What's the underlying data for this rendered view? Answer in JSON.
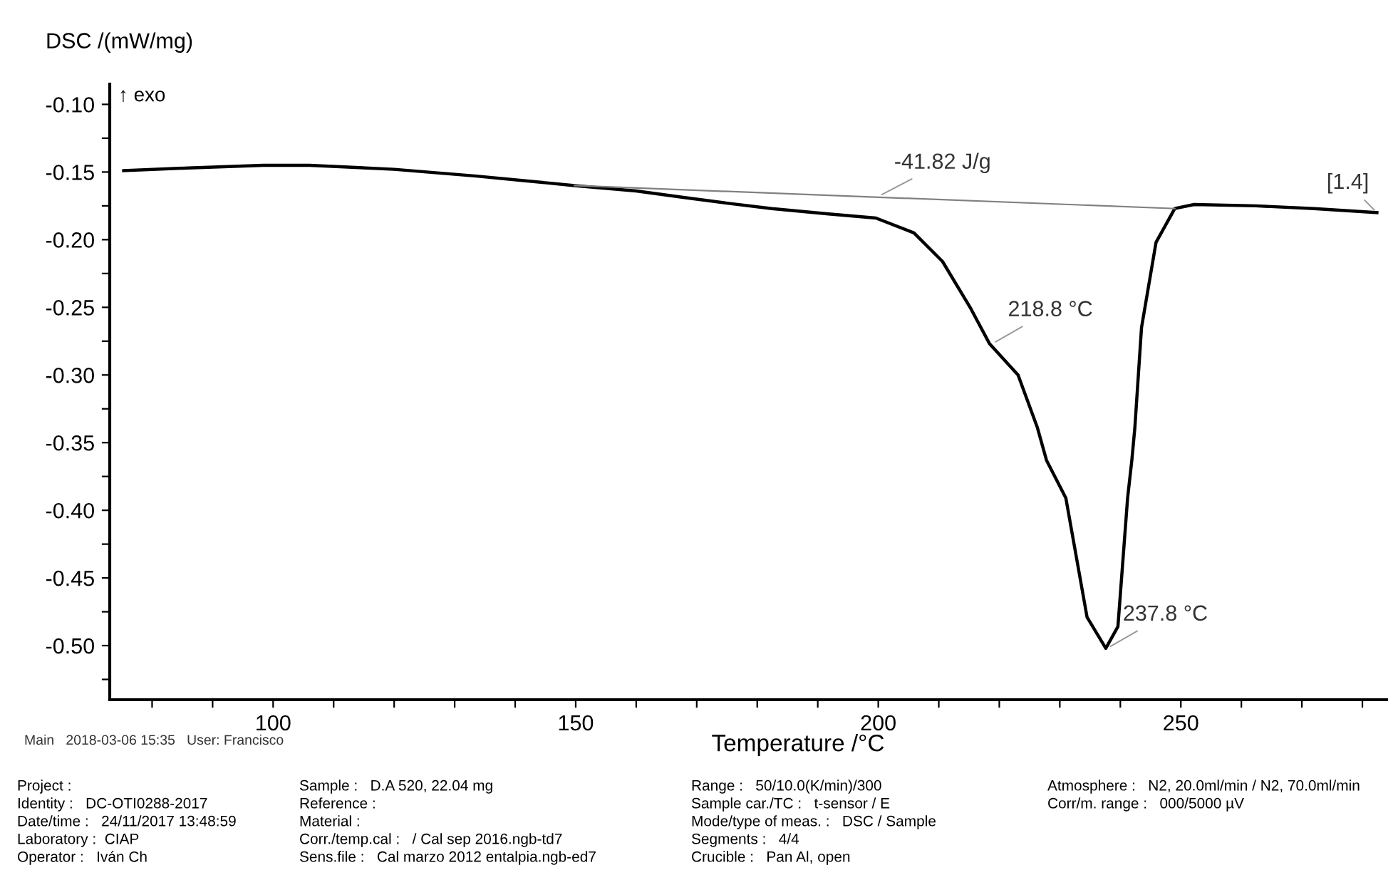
{
  "chart_data": {
    "type": "line",
    "xlabel": "Temperature /°C",
    "ylabel": "DSC /(mW/mg)",
    "xlim": [
      73,
      284
    ],
    "ylim": [
      -0.54,
      -0.085
    ],
    "xticks": [
      {
        "value": 80,
        "label": null
      },
      {
        "value": 90,
        "label": null
      },
      100,
      {
        "value": 110,
        "label": null
      },
      {
        "value": 120,
        "label": null
      },
      {
        "value": 130,
        "label": null
      },
      {
        "value": 140,
        "label": null
      },
      150,
      {
        "value": 160,
        "label": null
      },
      {
        "value": 170,
        "label": null
      },
      {
        "value": 180,
        "label": null
      },
      {
        "value": 190,
        "label": null
      },
      200,
      {
        "value": 210,
        "label": null
      },
      {
        "value": 220,
        "label": null
      },
      {
        "value": 230,
        "label": null
      },
      {
        "value": 240,
        "label": null
      },
      250,
      {
        "value": 260,
        "label": null
      },
      {
        "value": 270,
        "label": null
      },
      {
        "value": 280,
        "label": null
      }
    ],
    "yticks": [
      {
        "value": -0.1,
        "label": "-0.10"
      },
      {
        "value": -0.125,
        "label": null
      },
      {
        "value": -0.15,
        "label": "-0.15"
      },
      {
        "value": -0.175,
        "label": null
      },
      {
        "value": -0.2,
        "label": "-0.20"
      },
      {
        "value": -0.225,
        "label": null
      },
      {
        "value": -0.25,
        "label": "-0.25"
      },
      {
        "value": -0.275,
        "label": null
      },
      {
        "value": -0.3,
        "label": "-0.30"
      },
      {
        "value": -0.325,
        "label": null
      },
      {
        "value": -0.35,
        "label": "-0.35"
      },
      {
        "value": -0.375,
        "label": null
      },
      {
        "value": -0.4,
        "label": "-0.40"
      },
      {
        "value": -0.425,
        "label": null
      },
      {
        "value": -0.45,
        "label": "-0.45"
      },
      {
        "value": -0.475,
        "label": null
      },
      {
        "value": -0.5,
        "label": "-0.50"
      },
      {
        "value": -0.525,
        "label": null
      }
    ],
    "series": [
      {
        "color": "#000000",
        "x": [
          75.3,
          86,
          98.4,
          106,
          120,
          133.6,
          149.8,
          160,
          168.2,
          175,
          182.4,
          191.8,
          199.6,
          205.9,
          210.6,
          215.3,
          218.4,
          223.1,
          226.3,
          227.8,
          231,
          234.5,
          237.6,
          239.6,
          241.2,
          241.9,
          242.4,
          243.5,
          245.9,
          249,
          252.2,
          262.4,
          272,
          282.4
        ],
        "values": [
          -0.149,
          -0.147,
          -0.145,
          -0.145,
          -0.148,
          -0.153,
          -0.16,
          -0.164,
          -0.169,
          -0.173,
          -0.177,
          -0.181,
          -0.184,
          -0.195,
          -0.216,
          -0.251,
          -0.277,
          -0.3,
          -0.339,
          -0.363,
          -0.391,
          -0.479,
          -0.502,
          -0.486,
          -0.391,
          -0.363,
          -0.339,
          -0.265,
          -0.202,
          -0.177,
          -0.174,
          -0.175,
          -0.177,
          -0.18
        ]
      },
      {
        "color": "#808080",
        "x": [
          149.8,
          249
        ],
        "values": [
          -0.16,
          -0.177
        ]
      }
    ],
    "annotations": [
      "↑ exo",
      {
        "text": "-41.82 J/g",
        "x": 200,
        "y": -0.168
      },
      {
        "text": "218.8 °C",
        "x": 218.8,
        "y": -0.277
      },
      {
        "text": "237.8 °C",
        "x": 237.8,
        "y": -0.502
      },
      {
        "text": "[1.4]",
        "x": 282.4,
        "y": -0.18
      },
      "Main   2018-03-06 15:35   User: Francisco",
      "Project :",
      "Identity :   DC-OTI0288-2017",
      "Date/time :   24/11/2017 13:48:59",
      "Laboratory :  CIAP",
      "Operator :   Iván Ch",
      "Sample :   D.A 520, 22.04 mg",
      "Reference :",
      "Material :",
      "Corr./temp.cal :   / Cal sep 2016.ngb-td7",
      "Sens.file :   Cal marzo 2012 entalpia.ngb-ed7",
      "Range :   50/10.0(K/min)/300",
      "Sample car./TC :   t-sensor / E",
      "Mode/type of meas. :   DSC / Sample",
      "Segments :   4/4",
      "Crucible :   Pan Al, open",
      "Atmosphere :   N2, 20.0ml/min / N2, 70.0ml/min",
      "Corr/m. range :   000/5000 µV"
    ]
  }
}
